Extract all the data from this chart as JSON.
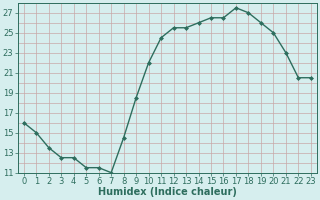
{
  "x": [
    0,
    1,
    2,
    3,
    4,
    5,
    6,
    7,
    8,
    9,
    10,
    11,
    12,
    13,
    14,
    15,
    16,
    17,
    18,
    19,
    20,
    21,
    22,
    23
  ],
  "y": [
    16,
    15,
    13.5,
    12.5,
    12.5,
    11.5,
    11.5,
    11,
    14.5,
    18.5,
    22,
    24.5,
    25.5,
    25.5,
    26,
    26.5,
    26.5,
    27.5,
    27,
    26,
    25,
    23,
    20.5,
    20.5
  ],
  "line_color": "#2e6e5e",
  "marker": "D",
  "marker_size": 2.0,
  "bg_color": "#d6eeee",
  "grid_color": "#c8a8a8",
  "xlabel": "Humidex (Indice chaleur)",
  "xlabel_fontsize": 7,
  "tick_fontsize": 6,
  "ylim": [
    11,
    28
  ],
  "yticks": [
    11,
    13,
    15,
    17,
    19,
    21,
    23,
    25,
    27
  ],
  "xlim": [
    -0.5,
    23.5
  ],
  "xticks": [
    0,
    1,
    2,
    3,
    4,
    5,
    6,
    7,
    8,
    9,
    10,
    11,
    12,
    13,
    14,
    15,
    16,
    17,
    18,
    19,
    20,
    21,
    22,
    23
  ],
  "linewidth": 1.0
}
